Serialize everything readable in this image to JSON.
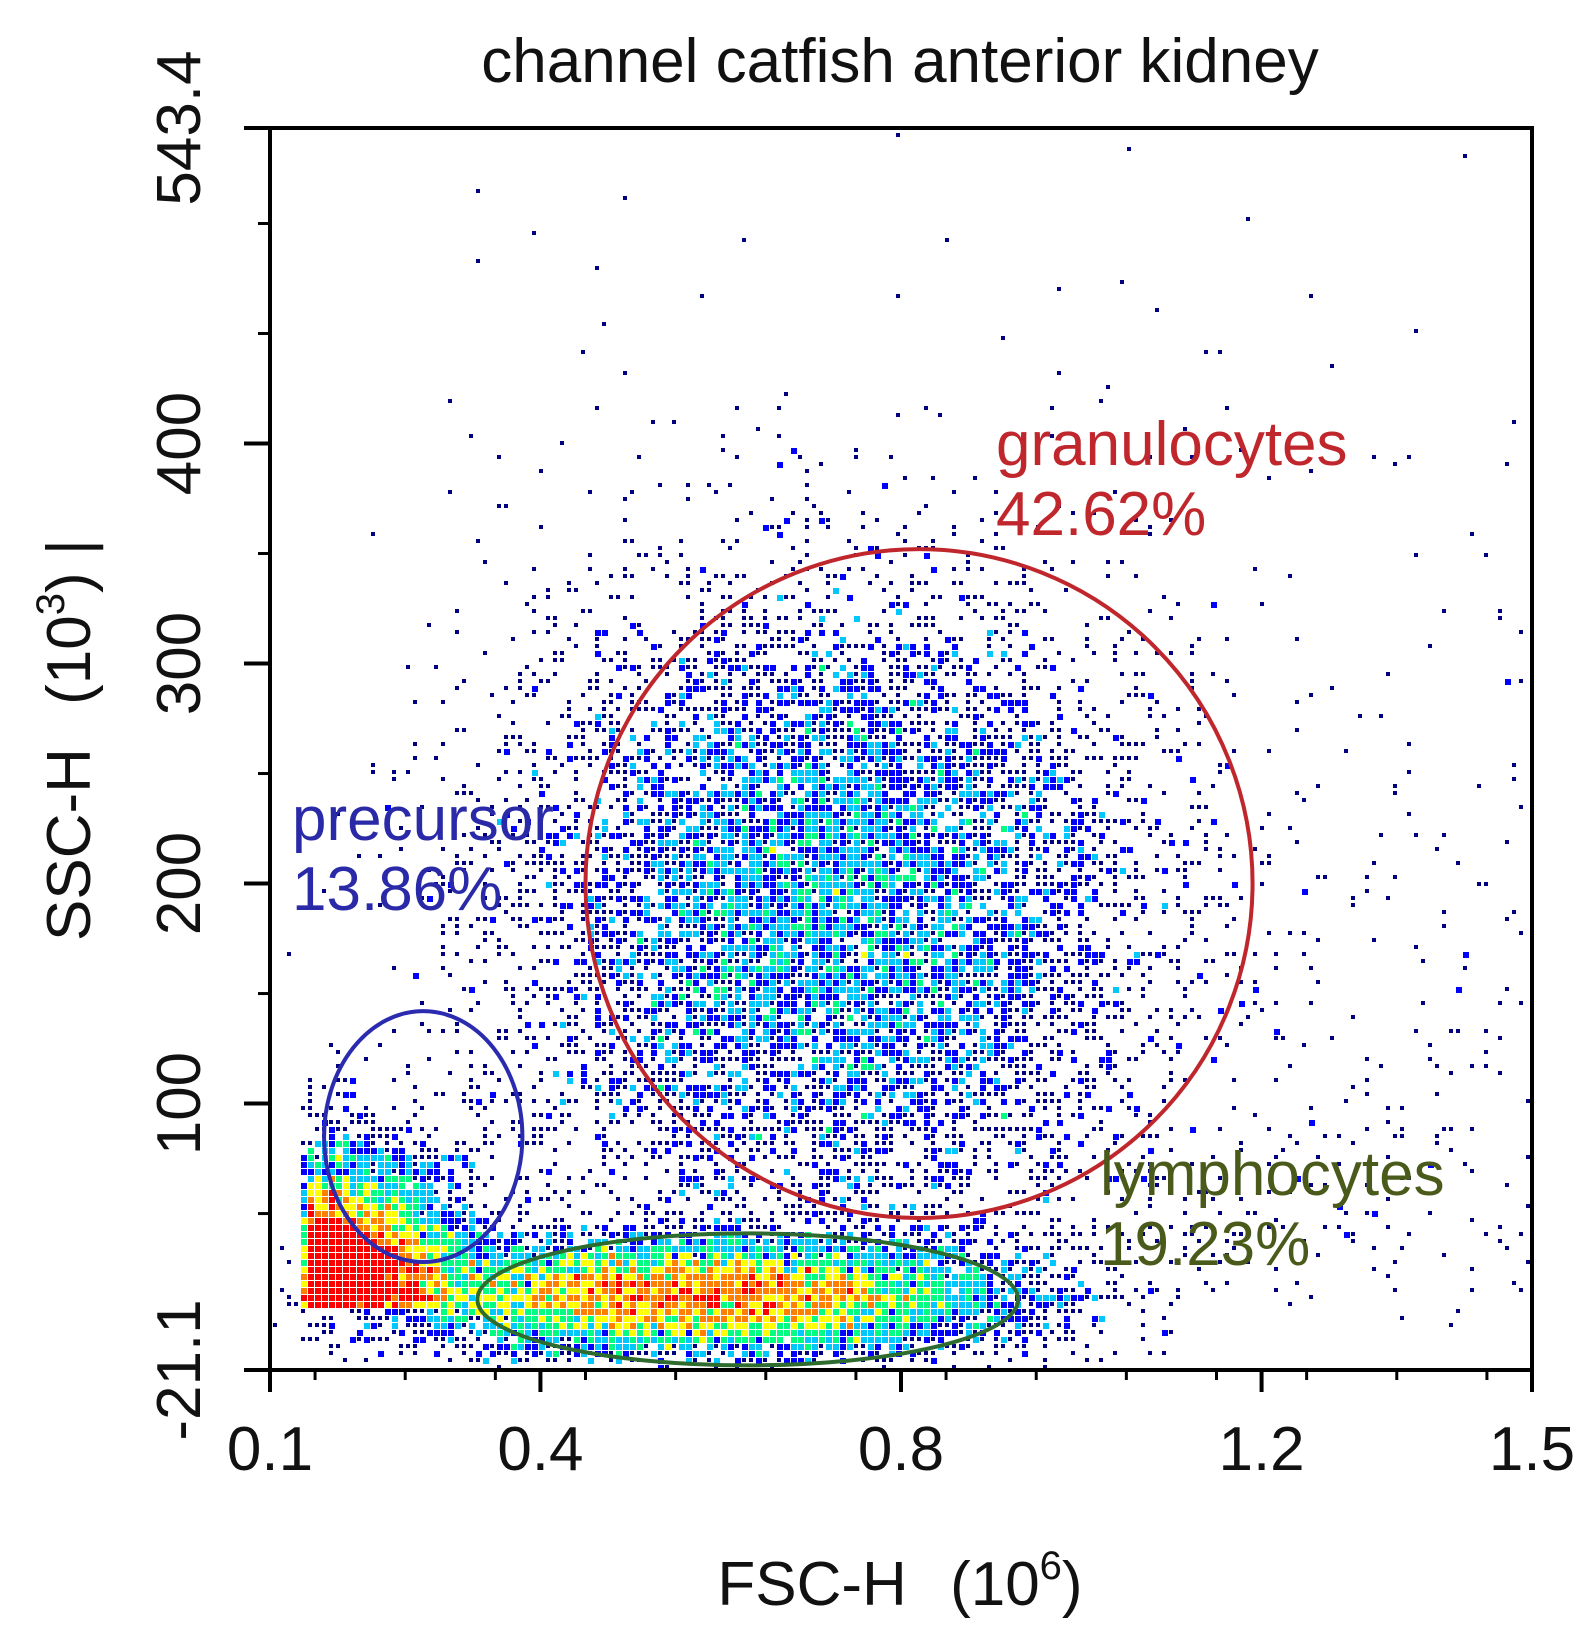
{
  "chart_data": {
    "type": "scatter",
    "subtype": "flow-cytometry-density-dot-plot",
    "title": "channel catfish anterior kidney",
    "xlabel": "FSC-H",
    "xlabel_exponent": "(10",
    "xlabel_power": "6",
    "xlabel_close": ")",
    "ylabel": "SSC-H",
    "ylabel_exponent": "(10",
    "ylabel_power": "3",
    "ylabel_close": ") |",
    "xlim": [
      0.1,
      1.5
    ],
    "ylim": [
      -21.1,
      543.4
    ],
    "x_ticks": [
      {
        "value": 0.1,
        "label": "0.1"
      },
      {
        "value": 0.4,
        "label": "0.4"
      },
      {
        "value": 0.8,
        "label": "0.8"
      },
      {
        "value": 1.2,
        "label": "1.2"
      },
      {
        "value": 1.5,
        "label": "1.5"
      }
    ],
    "y_ticks": [
      {
        "value": -21.1,
        "label": "-21.1"
      },
      {
        "value": 100,
        "label": "100"
      },
      {
        "value": 200,
        "label": "200"
      },
      {
        "value": 300,
        "label": "300"
      },
      {
        "value": 400,
        "label": "400"
      },
      {
        "value": 543.4,
        "label": "543.4"
      }
    ],
    "grid": false,
    "colormap": [
      "#000080",
      "#0000ff",
      "#00c8ff",
      "#00ff80",
      "#ffff00",
      "#ff8000",
      "#ff0000"
    ],
    "populations": [
      {
        "name": "precursor",
        "percent": "13.86%",
        "gate_color": "#2b2bb0",
        "label_color": "#2a2aa8",
        "center": [
          0.27,
          85
        ],
        "radius": [
          0.11,
          57
        ]
      },
      {
        "name": "granulocytes",
        "percent": "42.62%",
        "gate_color": "#c0272d",
        "label_color": "#c0272d",
        "center": [
          0.82,
          200
        ],
        "radius": [
          0.37,
          152
        ]
      },
      {
        "name": "lymphocytes",
        "percent": "19.23%",
        "gate_color": "#2e6b2e",
        "label_color": "#4a5a1a",
        "center": [
          0.63,
          11
        ],
        "radius": [
          0.3,
          30
        ]
      }
    ]
  }
}
